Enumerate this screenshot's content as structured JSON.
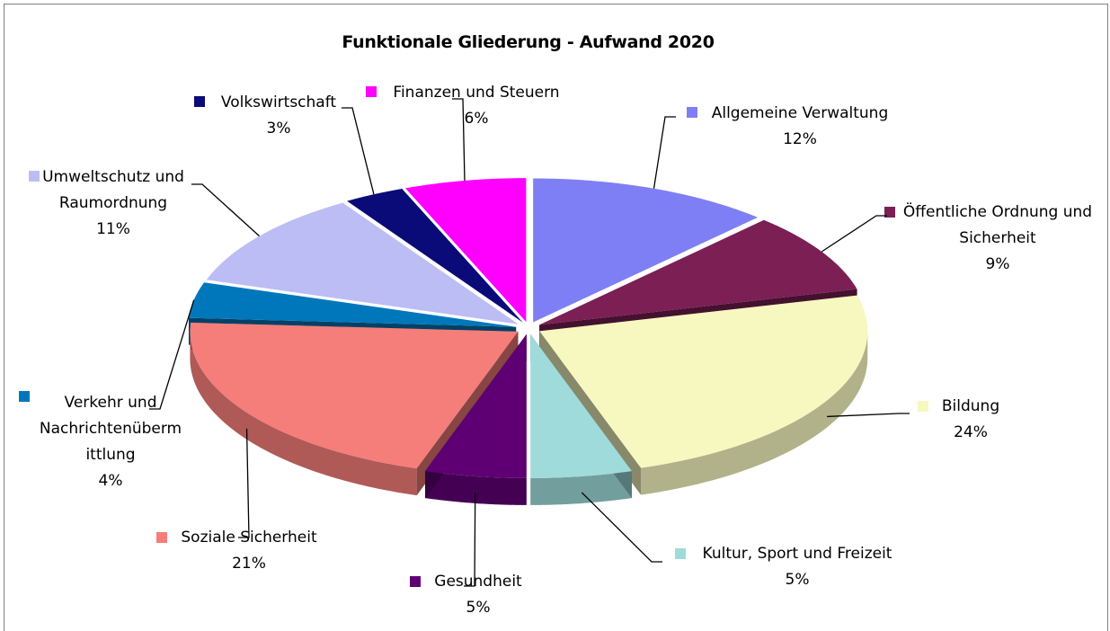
{
  "chart_data": {
    "type": "pie3d",
    "title": "Funktionale Gliederung - Aufwand 2020",
    "categories": [
      "Allgemeine Verwaltung",
      "Öffentliche Ordnung und Sicherheit",
      "Bildung",
      "Kultur, Sport und Freizeit",
      "Gesundheit",
      "Soziale Sicherheit",
      "Verkehr und Nachrichtenübermittlung",
      "Umweltschutz und Raumordnung",
      "Volkswirtschaft",
      "Finanzen und Steuern"
    ],
    "values": [
      12,
      9,
      24,
      5,
      5,
      21,
      4,
      11,
      3,
      6
    ],
    "value_labels": [
      "12%",
      "9%",
      "24%",
      "5%",
      "5%",
      "21%",
      "4%",
      "11%",
      "3%",
      "6%"
    ],
    "colors": [
      "#7f7ff5",
      "#7b1f55",
      "#f7f7c0",
      "#9fdbdb",
      "#5e0073",
      "#f57d7a",
      "#0077bb",
      "#bdbdf5",
      "#0a0a78",
      "#ff00ff"
    ]
  }
}
